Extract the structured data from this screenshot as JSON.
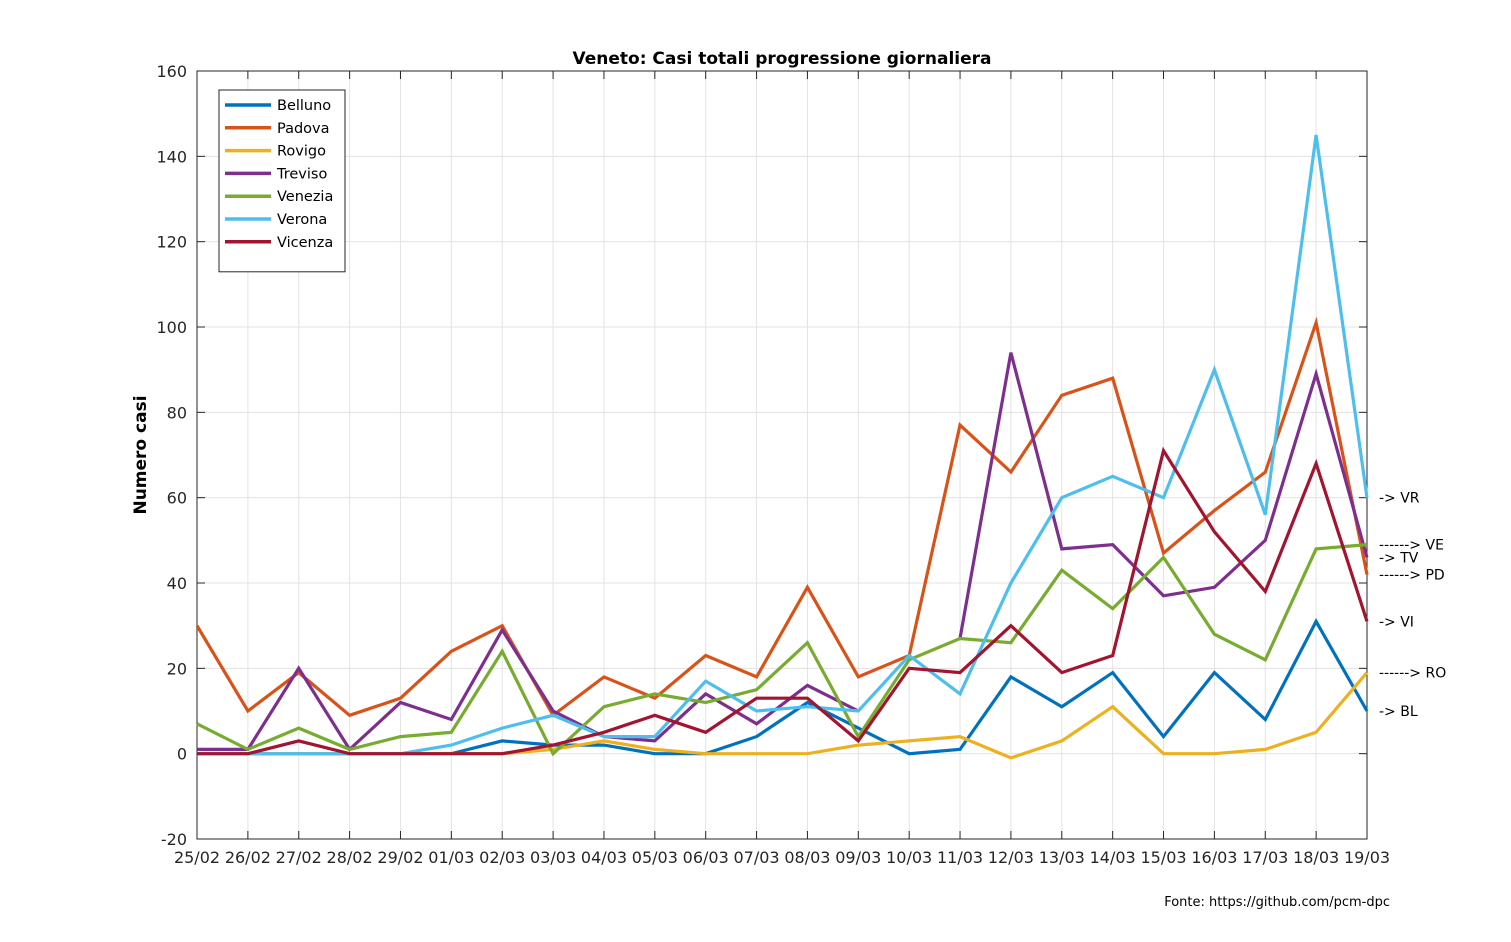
{
  "chart_data": {
    "type": "line",
    "title": "Veneto: Casi totali progressione giornaliera",
    "xlabel": "",
    "ylabel": "Numero casi",
    "ylim": [
      -20,
      160
    ],
    "yticks": [
      -20,
      0,
      20,
      40,
      60,
      80,
      100,
      120,
      140,
      160
    ],
    "grid": true,
    "legend_position": "top-left",
    "categories": [
      "25/02",
      "26/02",
      "27/02",
      "28/02",
      "29/02",
      "01/03",
      "02/03",
      "03/03",
      "04/03",
      "05/03",
      "06/03",
      "07/03",
      "08/03",
      "09/03",
      "10/03",
      "11/03",
      "12/03",
      "13/03",
      "14/03",
      "15/03",
      "16/03",
      "17/03",
      "18/03",
      "19/03"
    ],
    "series": [
      {
        "name": "Belluno",
        "color": "#0072BD",
        "end_label": "-> BL",
        "values": [
          0,
          0,
          0,
          0,
          0,
          0,
          3,
          2,
          2,
          0,
          0,
          4,
          12,
          6,
          0,
          1,
          18,
          11,
          19,
          4,
          19,
          8,
          31,
          10
        ]
      },
      {
        "name": "Padova",
        "color": "#D95319",
        "end_label": "------> PD",
        "values": [
          30,
          10,
          19,
          9,
          13,
          24,
          30,
          9,
          18,
          13,
          23,
          18,
          39,
          18,
          23,
          77,
          66,
          84,
          88,
          47,
          57,
          66,
          101,
          42
        ]
      },
      {
        "name": "Rovigo",
        "color": "#EDB120",
        "end_label": "------> RO",
        "values": [
          0,
          0,
          0,
          0,
          0,
          0,
          0,
          1,
          3,
          1,
          0,
          0,
          0,
          2,
          3,
          4,
          -1,
          3,
          11,
          0,
          0,
          1,
          5,
          19
        ]
      },
      {
        "name": "Treviso",
        "color": "#7E2F8E",
        "end_label": "-> TV",
        "values": [
          1,
          1,
          20,
          1,
          12,
          8,
          29,
          10,
          4,
          3,
          14,
          7,
          16,
          10,
          null,
          27,
          94,
          48,
          49,
          37,
          39,
          50,
          89,
          46
        ]
      },
      {
        "name": "Venezia",
        "color": "#77AC30",
        "end_label": "------> VE",
        "values": [
          7,
          1,
          6,
          1,
          4,
          5,
          24,
          0,
          11,
          14,
          12,
          15,
          26,
          4,
          22,
          27,
          26,
          43,
          34,
          46,
          28,
          22,
          48,
          49
        ]
      },
      {
        "name": "Verona",
        "color": "#4DBEEE",
        "end_label": "-> VR",
        "values": [
          0,
          0,
          0,
          0,
          0,
          2,
          6,
          9,
          4,
          4,
          17,
          10,
          11,
          10,
          23,
          14,
          40,
          60,
          65,
          60,
          90,
          56,
          145,
          60
        ]
      },
      {
        "name": "Vicenza",
        "color": "#A2142F",
        "end_label": "-> VI",
        "values": [
          0,
          0,
          3,
          0,
          0,
          0,
          0,
          2,
          5,
          9,
          5,
          13,
          13,
          3,
          20,
          19,
          30,
          19,
          23,
          71,
          52,
          38,
          68,
          31
        ]
      }
    ]
  },
  "footer": {
    "source": "Fonte: https://github.com/pcm-dpc"
  }
}
